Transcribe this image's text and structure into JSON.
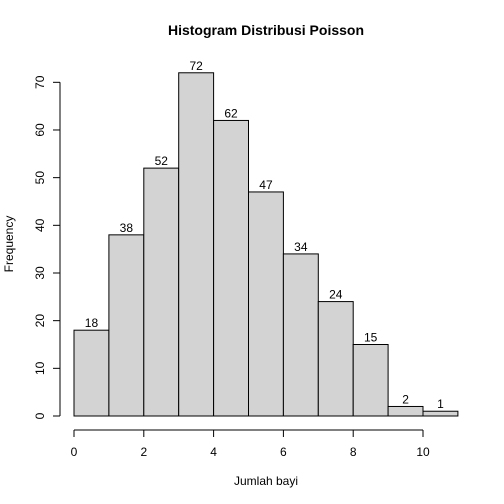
{
  "chart_data": {
    "type": "bar",
    "title": "Histogram Distribusi Poisson",
    "xlabel": "Jumlah bayi",
    "ylabel": "Frequency",
    "bins": [
      [
        0,
        1
      ],
      [
        1,
        2
      ],
      [
        2,
        3
      ],
      [
        3,
        4
      ],
      [
        4,
        5
      ],
      [
        5,
        6
      ],
      [
        6,
        7
      ],
      [
        7,
        8
      ],
      [
        8,
        9
      ],
      [
        9,
        10
      ],
      [
        10,
        11
      ]
    ],
    "values": [
      18,
      38,
      52,
      72,
      62,
      47,
      34,
      24,
      15,
      2,
      1
    ],
    "data_labels": [
      "18",
      "38",
      "52",
      "72",
      "62",
      "47",
      "34",
      "24",
      "15",
      "2",
      "1"
    ],
    "xlim": [
      0,
      11
    ],
    "ylim": [
      0,
      72
    ],
    "x_ticks": [
      0,
      2,
      4,
      6,
      8,
      10
    ],
    "x_tick_labels": [
      "0",
      "2",
      "4",
      "6",
      "8",
      "10"
    ],
    "y_ticks": [
      0,
      10,
      20,
      30,
      40,
      50,
      60,
      70
    ],
    "y_tick_labels": [
      "0",
      "10",
      "20",
      "30",
      "40",
      "50",
      "60",
      "70"
    ],
    "grid": false,
    "bar_color": "#d3d3d3",
    "edge_color": "#000000"
  }
}
